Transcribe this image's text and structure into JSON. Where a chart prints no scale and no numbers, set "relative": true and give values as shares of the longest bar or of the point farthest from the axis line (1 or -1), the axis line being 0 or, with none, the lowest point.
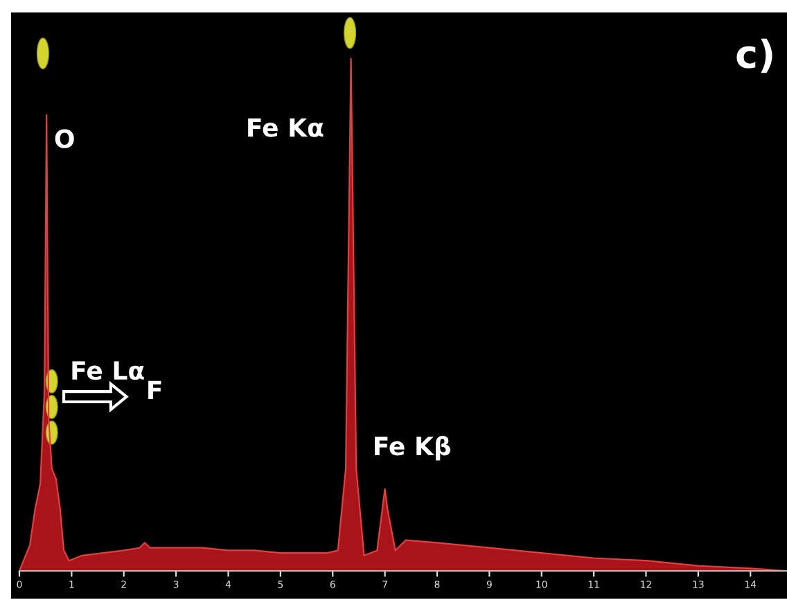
{
  "chart_data": {
    "type": "area",
    "relative": true,
    "color": "#a8141a",
    "x": [
      0,
      0.2,
      0.3,
      0.4,
      0.48,
      0.52,
      0.56,
      0.62,
      0.7,
      0.78,
      0.85,
      0.95,
      1.2,
      1.6,
      2.0,
      2.3,
      2.4,
      2.5,
      3.0,
      3.5,
      4.0,
      4.5,
      5.0,
      5.5,
      5.9,
      6.1,
      6.25,
      6.35,
      6.45,
      6.6,
      6.85,
      6.95,
      7.0,
      7.05,
      7.2,
      7.4,
      8,
      9,
      10,
      11,
      12,
      13,
      14,
      14.7
    ],
    "values": [
      0,
      0.05,
      0.12,
      0.17,
      0.35,
      0.89,
      0.3,
      0.2,
      0.18,
      0.12,
      0.04,
      0.02,
      0.03,
      0.035,
      0.04,
      0.045,
      0.055,
      0.045,
      0.045,
      0.045,
      0.04,
      0.04,
      0.035,
      0.035,
      0.035,
      0.04,
      0.2,
      1,
      0.2,
      0.03,
      0.04,
      0.12,
      0.16,
      0.12,
      0.04,
      0.06,
      0.055,
      0.045,
      0.035,
      0.025,
      0.02,
      0.01,
      0.005,
      0
    ],
    "xlim": [
      0,
      14.7
    ],
    "xticks": [
      0,
      1,
      2,
      3,
      4,
      5,
      6,
      7,
      8,
      9,
      10,
      11,
      12,
      13,
      14
    ],
    "grid": false,
    "annotations": [
      "O",
      "Fe Kα",
      "Fe Lα",
      "F",
      "Fe Kβ",
      "c)"
    ]
  }
}
